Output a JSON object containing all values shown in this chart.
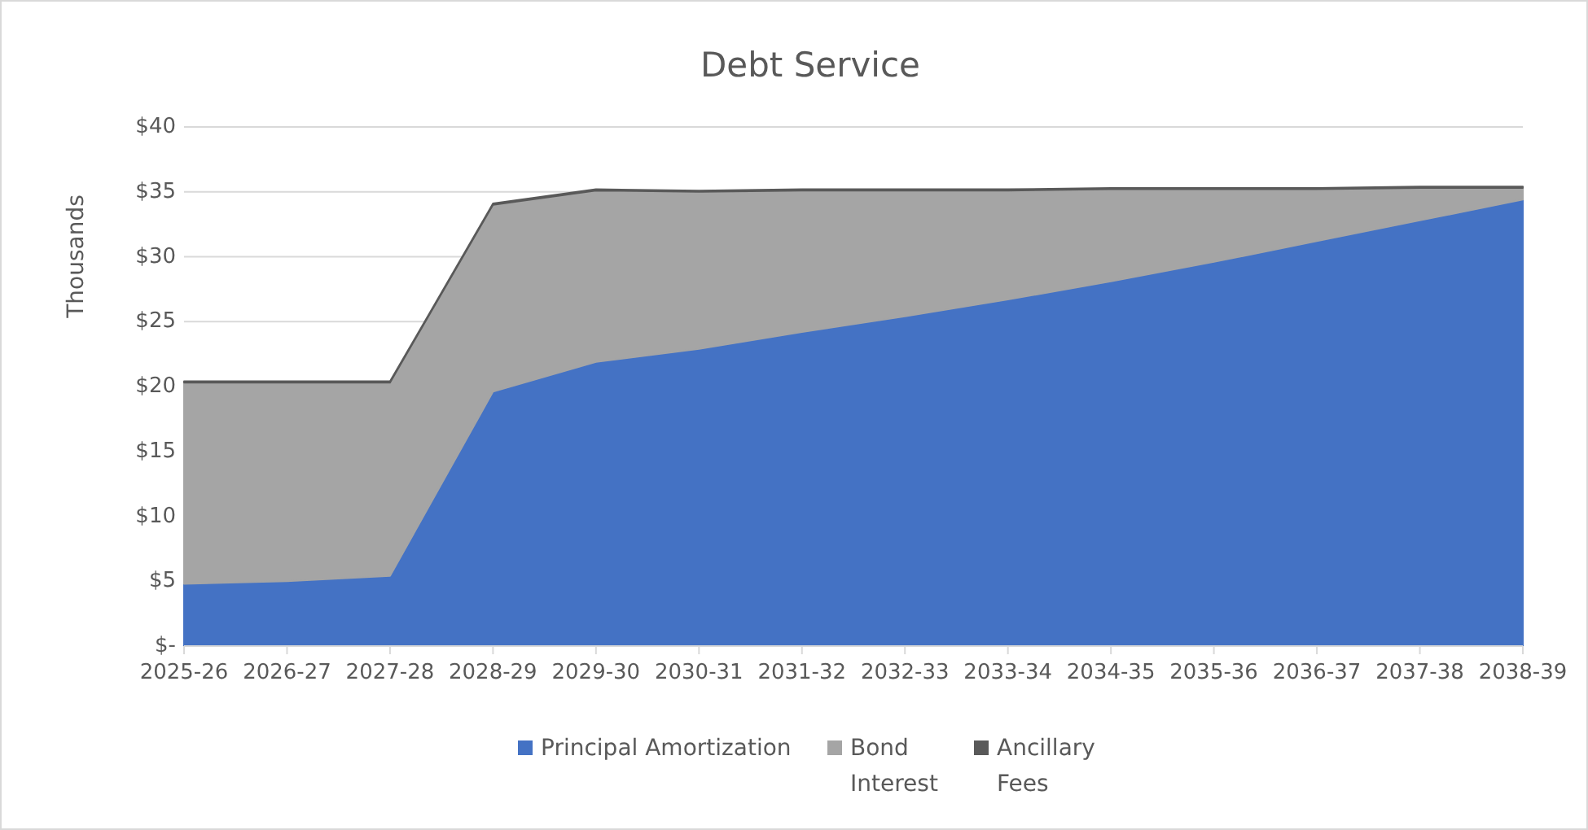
{
  "chart_data": {
    "type": "area",
    "title": "Debt Service",
    "ylabel": "Thousands",
    "stacked": true,
    "categories": [
      "2025-26",
      "2026-27",
      "2027-28",
      "2028-29",
      "2029-30",
      "2030-31",
      "2031-32",
      "2032-33",
      "2033-34",
      "2034-35",
      "2035-36",
      "2036-37",
      "2037-38",
      "2038-39"
    ],
    "series": [
      {
        "name": "Principal Amortization",
        "color": "#4472c4",
        "values": [
          4.8,
          5.0,
          5.4,
          19.6,
          21.9,
          22.9,
          24.2,
          25.4,
          26.7,
          28.1,
          29.6,
          31.2,
          32.8,
          34.4
        ]
      },
      {
        "name": "Bond Interest",
        "color": "#a5a5a5",
        "values": [
          15.5,
          15.3,
          14.9,
          14.4,
          13.2,
          12.1,
          10.9,
          9.7,
          8.4,
          7.1,
          5.6,
          4.0,
          2.5,
          0.9
        ]
      },
      {
        "name": "Ancillary Fees",
        "color": "#595959",
        "values": [
          0.1,
          0.1,
          0.1,
          0.1,
          0.1,
          0.1,
          0.1,
          0.1,
          0.1,
          0.1,
          0.1,
          0.1,
          0.1,
          0.1
        ]
      }
    ],
    "ylim": [
      0,
      40
    ],
    "yticks": [
      {
        "value": 0,
        "label": "$-"
      },
      {
        "value": 5,
        "label": "$5"
      },
      {
        "value": 10,
        "label": "$10"
      },
      {
        "value": 15,
        "label": "$15"
      },
      {
        "value": 20,
        "label": "$20"
      },
      {
        "value": 25,
        "label": "$25"
      },
      {
        "value": 30,
        "label": "$30"
      },
      {
        "value": 35,
        "label": "$35"
      },
      {
        "value": 40,
        "label": "$40"
      }
    ],
    "grid": "y",
    "legend": "bottom"
  }
}
